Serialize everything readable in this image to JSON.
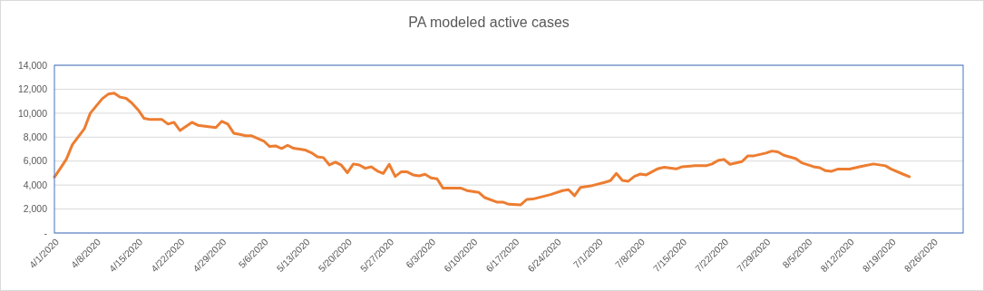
{
  "chart_data": {
    "type": "line",
    "title": "PA modeled active cases",
    "x": [
      "2020-04-01",
      "2020-04-02",
      "2020-04-03",
      "2020-04-04",
      "2020-04-06",
      "2020-04-07",
      "2020-04-09",
      "2020-04-10",
      "2020-04-11",
      "2020-04-12",
      "2020-04-13",
      "2020-04-14",
      "2020-04-15",
      "2020-04-16",
      "2020-04-17",
      "2020-04-19",
      "2020-04-20",
      "2020-04-21",
      "2020-04-22",
      "2020-04-24",
      "2020-04-25",
      "2020-04-28",
      "2020-04-29",
      "2020-04-30",
      "2020-05-01",
      "2020-05-02",
      "2020-05-03",
      "2020-05-04",
      "2020-05-06",
      "2020-05-07",
      "2020-05-08",
      "2020-05-09",
      "2020-05-10",
      "2020-05-11",
      "2020-05-13",
      "2020-05-14",
      "2020-05-15",
      "2020-05-16",
      "2020-05-17",
      "2020-05-18",
      "2020-05-19",
      "2020-05-20",
      "2020-05-21",
      "2020-05-22",
      "2020-05-23",
      "2020-05-24",
      "2020-05-25",
      "2020-05-26",
      "2020-05-27",
      "2020-05-28",
      "2020-05-29",
      "2020-05-30",
      "2020-05-31",
      "2020-06-01",
      "2020-06-02",
      "2020-06-03",
      "2020-06-04",
      "2020-06-05",
      "2020-06-08",
      "2020-06-09",
      "2020-06-11",
      "2020-06-12",
      "2020-06-14",
      "2020-06-15",
      "2020-06-16",
      "2020-06-18",
      "2020-06-19",
      "2020-06-20",
      "2020-06-23",
      "2020-06-25",
      "2020-06-26",
      "2020-06-27",
      "2020-06-28",
      "2020-06-30",
      "2020-07-02",
      "2020-07-03",
      "2020-07-04",
      "2020-07-05",
      "2020-07-06",
      "2020-07-07",
      "2020-07-08",
      "2020-07-09",
      "2020-07-11",
      "2020-07-12",
      "2020-07-14",
      "2020-07-15",
      "2020-07-17",
      "2020-07-19",
      "2020-07-20",
      "2020-07-21",
      "2020-07-22",
      "2020-07-23",
      "2020-07-25",
      "2020-07-26",
      "2020-07-27",
      "2020-07-29",
      "2020-07-30",
      "2020-07-31",
      "2020-08-01",
      "2020-08-03",
      "2020-08-04",
      "2020-08-06",
      "2020-08-07",
      "2020-08-08",
      "2020-08-09",
      "2020-08-10",
      "2020-08-12",
      "2020-08-14",
      "2020-08-16",
      "2020-08-18",
      "2020-08-19",
      "2020-08-21",
      "2020-08-22"
    ],
    "series": [
      {
        "color": "#ed7d31",
        "values": [
          4670,
          5400,
          6160,
          7370,
          8690,
          10000,
          11210,
          11590,
          11670,
          11340,
          11240,
          10830,
          10280,
          9570,
          9470,
          9470,
          9090,
          9240,
          8560,
          9240,
          8990,
          8790,
          9320,
          9090,
          8330,
          8230,
          8110,
          8110,
          7680,
          7220,
          7270,
          7050,
          7320,
          7070,
          6920,
          6690,
          6360,
          6290,
          5680,
          5910,
          5660,
          5030,
          5760,
          5680,
          5400,
          5530,
          5180,
          4970,
          5730,
          4720,
          5100,
          5100,
          4850,
          4770,
          4900,
          4600,
          4520,
          3740,
          3740,
          3540,
          3380,
          2950,
          2580,
          2580,
          2400,
          2350,
          2800,
          2830,
          3210,
          3540,
          3610,
          3110,
          3810,
          3960,
          4220,
          4370,
          4970,
          4390,
          4320,
          4720,
          4920,
          4850,
          5380,
          5480,
          5350,
          5530,
          5610,
          5610,
          5760,
          6060,
          6140,
          5730,
          5960,
          6440,
          6440,
          6670,
          6840,
          6770,
          6490,
          6210,
          5860,
          5530,
          5450,
          5200,
          5150,
          5330,
          5330,
          5560,
          5760,
          5610,
          5330,
          4900,
          4700
        ]
      }
    ],
    "xlim": [
      "2020-04-01",
      "2020-08-31"
    ],
    "xticks": [
      {
        "value": "2020-04-01",
        "label": "4/1/2020"
      },
      {
        "value": "2020-04-08",
        "label": "4/8/2020"
      },
      {
        "value": "2020-04-15",
        "label": "4/15/2020"
      },
      {
        "value": "2020-04-22",
        "label": "4/22/2020"
      },
      {
        "value": "2020-04-29",
        "label": "4/29/2020"
      },
      {
        "value": "2020-05-06",
        "label": "5/6/2020"
      },
      {
        "value": "2020-05-13",
        "label": "5/13/2020"
      },
      {
        "value": "2020-05-20",
        "label": "5/20/2020"
      },
      {
        "value": "2020-05-27",
        "label": "5/27/2020"
      },
      {
        "value": "2020-06-03",
        "label": "6/3/2020"
      },
      {
        "value": "2020-06-10",
        "label": "6/10/2020"
      },
      {
        "value": "2020-06-17",
        "label": "6/17/2020"
      },
      {
        "value": "2020-06-24",
        "label": "6/24/2020"
      },
      {
        "value": "2020-07-01",
        "label": "7/1/2020"
      },
      {
        "value": "2020-07-08",
        "label": "7/8/2020"
      },
      {
        "value": "2020-07-15",
        "label": "7/15/2020"
      },
      {
        "value": "2020-07-22",
        "label": "7/22/2020"
      },
      {
        "value": "2020-07-29",
        "label": "7/29/2020"
      },
      {
        "value": "2020-08-05",
        "label": "8/5/2020"
      },
      {
        "value": "2020-08-12",
        "label": "8/12/2020"
      },
      {
        "value": "2020-08-19",
        "label": "8/19/2020"
      },
      {
        "value": "2020-08-26",
        "label": "8/26/2020"
      }
    ],
    "ylim": [
      0,
      14000
    ],
    "yticks": [
      {
        "value": 0,
        "label": "-"
      },
      {
        "value": 2000,
        "label": "2,000"
      },
      {
        "value": 4000,
        "label": "4,000"
      },
      {
        "value": 6000,
        "label": "6,000"
      },
      {
        "value": 8000,
        "label": "8,000"
      },
      {
        "value": 10000,
        "label": "10,000"
      },
      {
        "value": 12000,
        "label": "12,000"
      },
      {
        "value": 14000,
        "label": "14,000"
      }
    ],
    "grid": "y",
    "marker": "none",
    "line_style": "solid"
  }
}
